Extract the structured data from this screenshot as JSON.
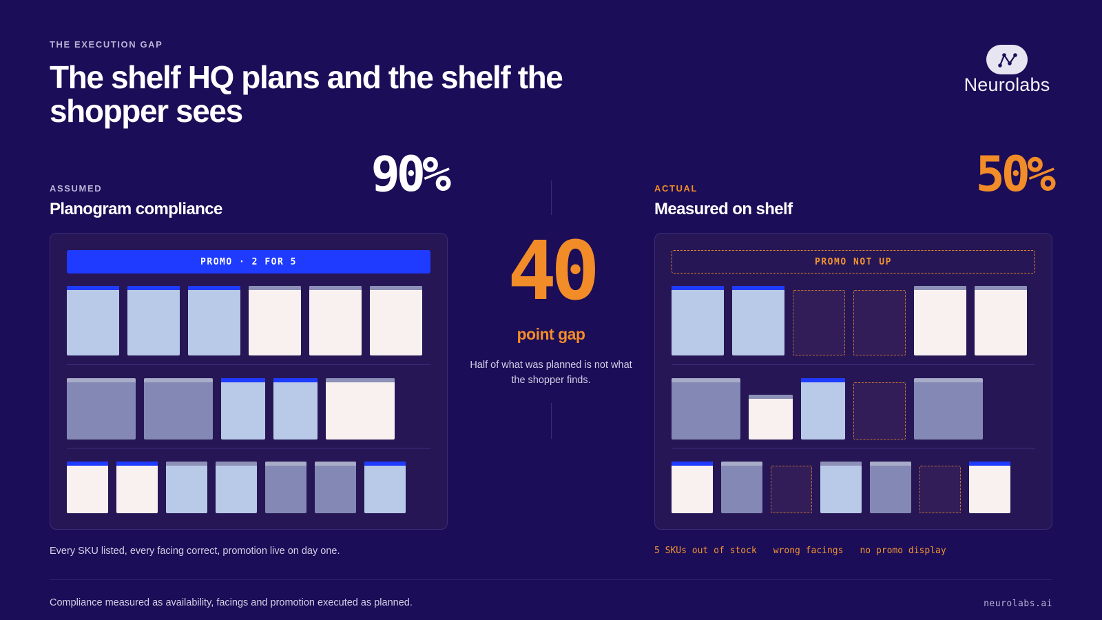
{
  "header": {
    "eyebrow": "THE EXECUTION GAP",
    "headline": "The shelf HQ plans and the shelf the shopper sees"
  },
  "logo": {
    "text": "Neurolabs",
    "icon": "network-nodes-icon"
  },
  "assumed": {
    "label": "ASSUMED",
    "title": "Planogram compliance",
    "percent": "90%",
    "promo_label": "PROMO · 2 FOR 5",
    "caption": "Every SKU listed, every facing correct, promotion live on day one."
  },
  "actual": {
    "label": "ACTUAL",
    "title": "Measured on shelf",
    "percent": "50%",
    "promo_label": "PROMO NOT UP",
    "issues": [
      "5 SKUs out of stock",
      "wrong facings",
      "no promo display"
    ]
  },
  "gap": {
    "value": "40",
    "label": "point gap",
    "description": "Half of what was planned is not what the shopper finds."
  },
  "footer": {
    "note": "Compliance measured as availability, facings and promotion executed as planned.",
    "url": "neurolabs.ai"
  },
  "colors": {
    "background": "#1b0d57",
    "accent_blue": "#1f3bff",
    "accent_orange": "#f28c28",
    "product_light": "#b9c9e8",
    "product_cream": "#f8f1f0",
    "product_mid": "#8389b4"
  }
}
